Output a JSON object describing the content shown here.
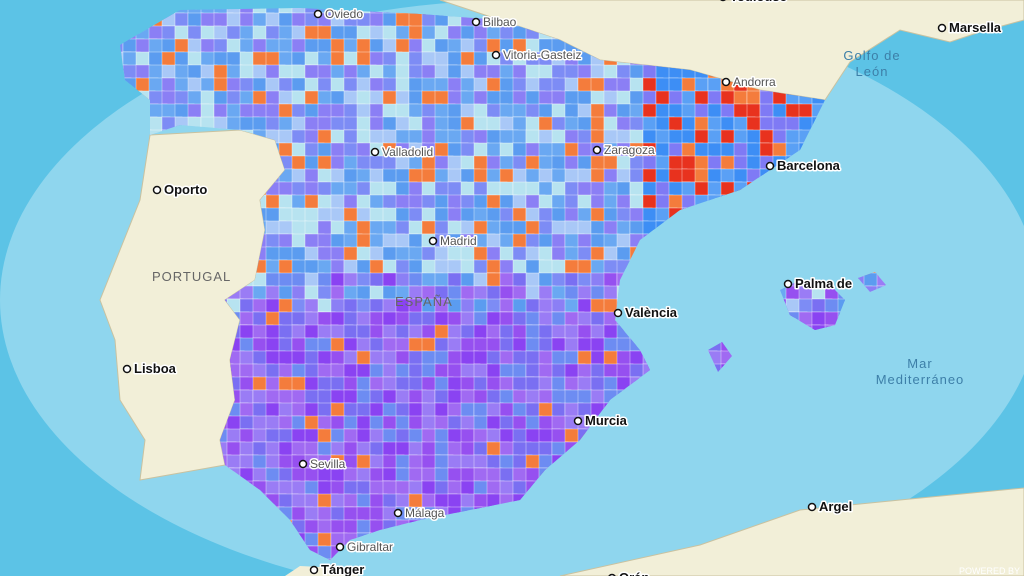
{
  "places": [
    "Toulouse",
    "Marsella",
    "Oviedo",
    "Bilbao",
    "Vitoria-Gasteiz",
    "Andorra",
    "Valladolid",
    "Zaragoza",
    "Barcelona",
    "Oporto",
    "Madrid",
    "València",
    "Palma de",
    "Lisboa",
    "Murcia",
    "Sevilla",
    "Málaga",
    "Gibraltar",
    "Argel",
    "Tánger",
    "Orán"
  ],
  "countries": [
    "PORTUGAL",
    "ESPAÑA"
  ],
  "seas": [
    [
      "Golfo de",
      "León"
    ],
    [
      "Mar",
      "Mediterráneo"
    ]
  ],
  "watermark": "POWERED BY"
}
